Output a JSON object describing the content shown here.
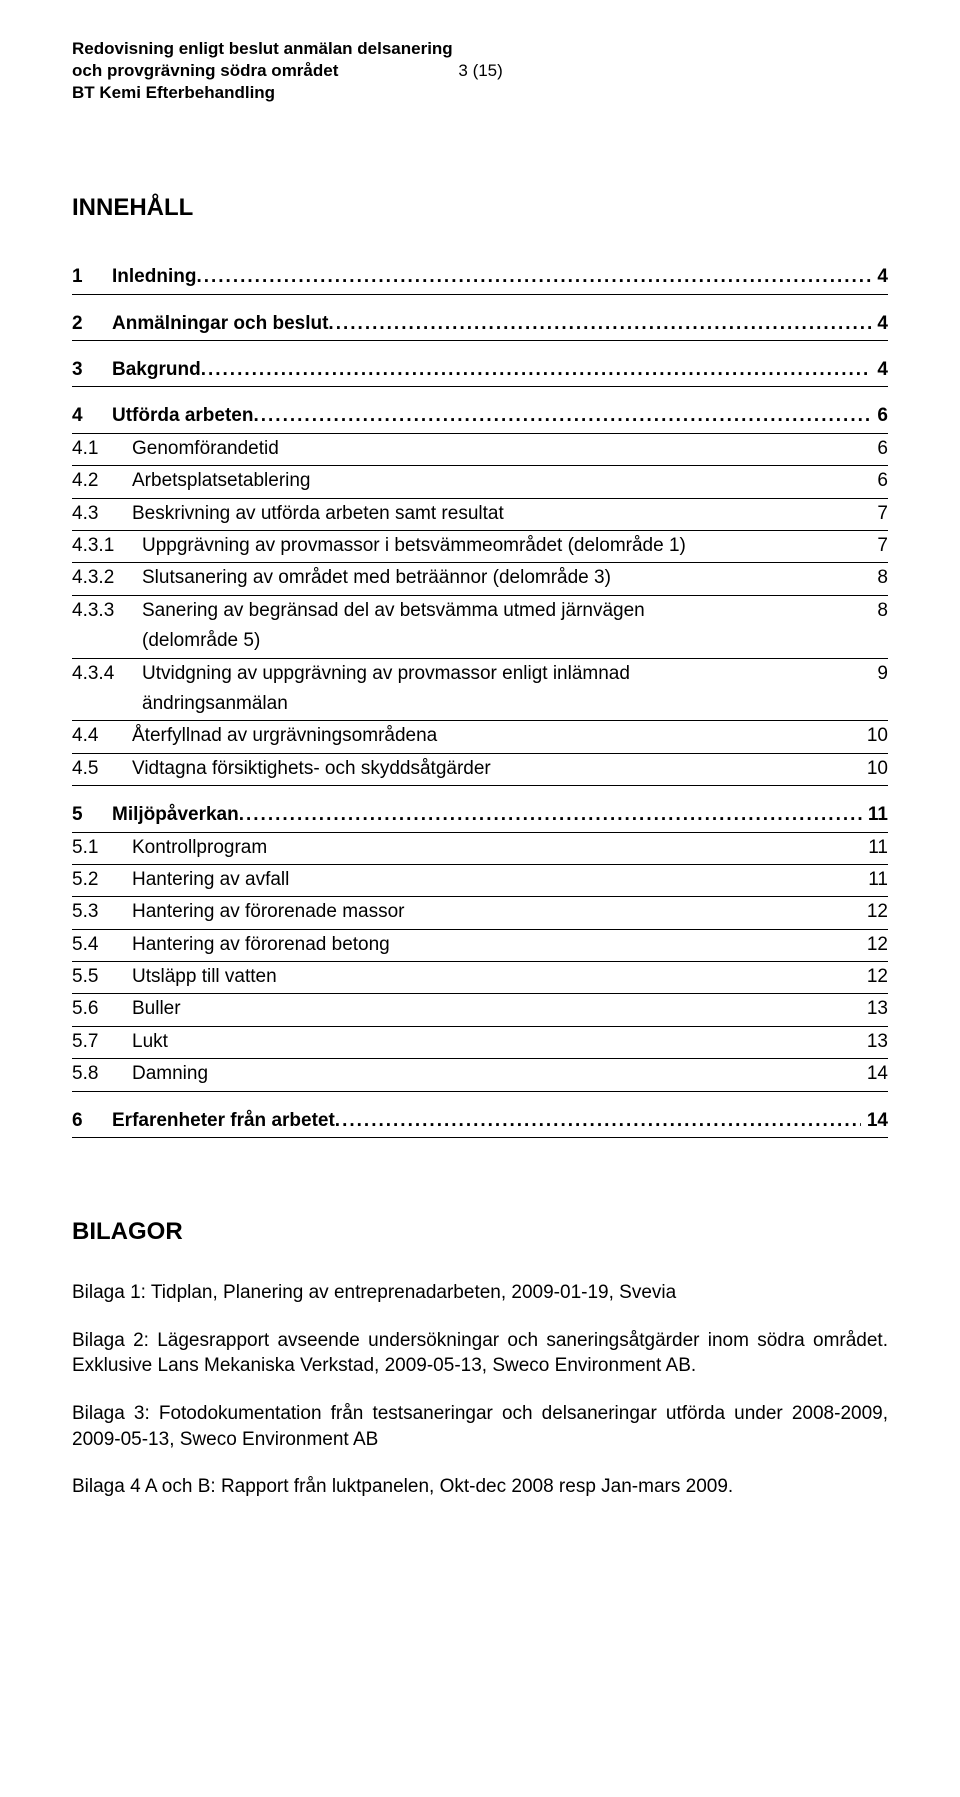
{
  "header": {
    "line1": "Redovisning enligt beslut anmälan delsanering",
    "line2_left": "och provgrävning södra området",
    "line2_pagenum": "3 (15)",
    "line3": "BT Kemi Efterbehandling"
  },
  "toc_title": "INNEHÅLL",
  "toc": [
    {
      "level": 1,
      "num": "1",
      "label": "Inledning",
      "page": "4",
      "dots": true,
      "bold": true
    },
    {
      "gap": true
    },
    {
      "level": 1,
      "num": "2",
      "label": "Anmälningar och beslut",
      "page": "4",
      "dots": true,
      "bold": true
    },
    {
      "gap": true
    },
    {
      "level": 1,
      "num": "3",
      "label": "Bakgrund",
      "page": "4",
      "dots": true,
      "bold": true
    },
    {
      "gap": true
    },
    {
      "level": 1,
      "num": "4",
      "label": "Utförda arbeten",
      "page": "6",
      "dots": true,
      "bold": true
    },
    {
      "level": 2,
      "num": "4.1",
      "label": "Genomförandetid",
      "page": "6",
      "dots": false
    },
    {
      "level": 2,
      "num": "4.2",
      "label": "Arbetsplatsetablering",
      "page": "6",
      "dots": false
    },
    {
      "level": 2,
      "num": "4.3",
      "label": "Beskrivning av utförda arbeten samt resultat",
      "page": "7",
      "dots": false
    },
    {
      "level": 3,
      "num": "4.3.1",
      "label": "Uppgrävning av provmassor i betsvämmeområdet (delområde 1)",
      "page": "7",
      "dots": false
    },
    {
      "level": 3,
      "num": "4.3.2",
      "label": "Slutsanering av området med beträännor (delområde 3)",
      "page": "8",
      "dots": false
    },
    {
      "level": 3,
      "num": "4.3.3",
      "label": "Sanering av begränsad del av betsvämma utmed järnvägen\n(delområde 5)",
      "page": "8",
      "dots": false,
      "multiline": true
    },
    {
      "level": 3,
      "num": "4.3.4",
      "label": "Utvidgning av uppgrävning av provmassor enligt inlämnad\nändringsanmälan",
      "page": "9",
      "dots": false,
      "multiline": true
    },
    {
      "level": 2,
      "num": "4.4",
      "label": "Återfyllnad av urgrävningsområdena",
      "page": "10",
      "dots": false
    },
    {
      "level": 2,
      "num": "4.5",
      "label": "Vidtagna försiktighets- och skyddsåtgärder",
      "page": "10",
      "dots": false
    },
    {
      "gap": true
    },
    {
      "level": 1,
      "num": "5",
      "label": "Miljöpåverkan",
      "page": "11",
      "dots": true,
      "bold": true
    },
    {
      "level": 2,
      "num": "5.1",
      "label": "Kontrollprogram",
      "page": "11",
      "dots": false
    },
    {
      "level": 2,
      "num": "5.2",
      "label": "Hantering av avfall",
      "page": "11",
      "dots": false
    },
    {
      "level": 2,
      "num": "5.3",
      "label": "Hantering av förorenade massor",
      "page": "12",
      "dots": false
    },
    {
      "level": 2,
      "num": "5.4",
      "label": "Hantering av förorenad betong",
      "page": "12",
      "dots": false
    },
    {
      "level": 2,
      "num": "5.5",
      "label": "Utsläpp till vatten",
      "page": "12",
      "dots": false
    },
    {
      "level": 2,
      "num": "5.6",
      "label": "Buller",
      "page": "13",
      "dots": false
    },
    {
      "level": 2,
      "num": "5.7",
      "label": "Lukt",
      "page": "13",
      "dots": false
    },
    {
      "level": 2,
      "num": "5.8",
      "label": "Damning",
      "page": "14",
      "dots": false
    },
    {
      "gap": true
    },
    {
      "level": 1,
      "num": "6",
      "label": "Erfarenheter från arbetet",
      "page": "14",
      "dots": true,
      "bold": true
    }
  ],
  "bilagor_title": "BILAGOR",
  "bilagor": [
    "Bilaga 1: Tidplan, Planering av entreprenadarbeten, 2009-01-19, Svevia",
    "Bilaga 2: Lägesrapport avseende undersökningar och saneringsåtgärder inom södra området. Exklusive Lans Mekaniska Verkstad, 2009-05-13, Sweco Environment AB.",
    "Bilaga 3: Fotodokumentation från testsaneringar och delsaneringar utförda under 2008-2009, 2009-05-13, Sweco Environment AB",
    "Bilaga 4 A och B: Rapport från luktpanelen, Okt-dec 2008 resp Jan-mars 2009."
  ]
}
